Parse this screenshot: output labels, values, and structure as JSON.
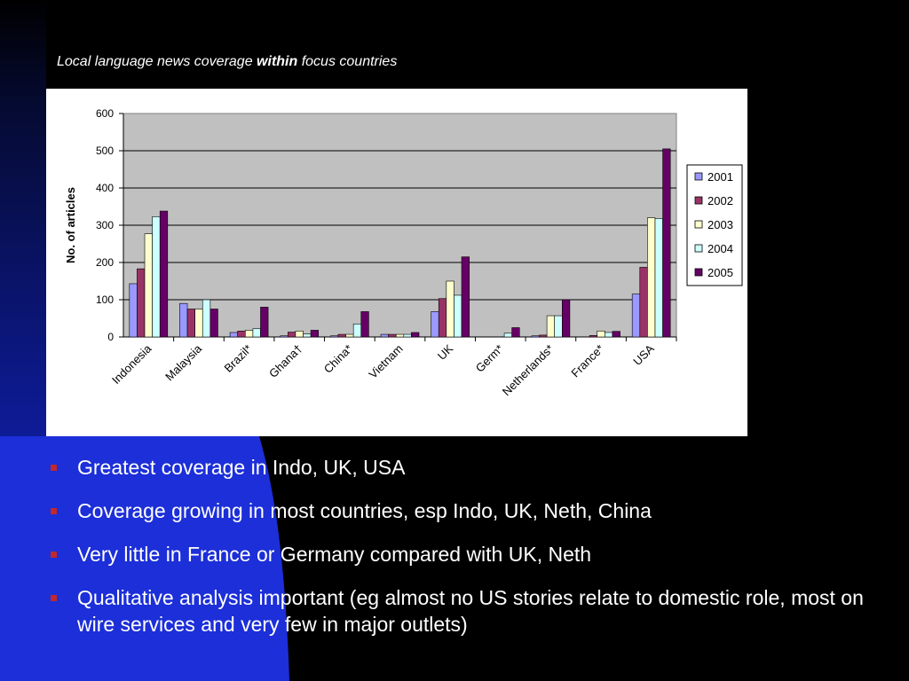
{
  "colors": {
    "background": "#000000",
    "blue_accent": "#1c2fd8",
    "text": "#ffffff",
    "bullet": "#c0282d",
    "plot_area": "#c0c0c0"
  },
  "title": {
    "before": "Local language news coverage ",
    "emphasis": "within",
    "after": " focus countries"
  },
  "chart_data": {
    "type": "bar",
    "title": "",
    "xlabel": "",
    "ylabel": "No. of articles",
    "ylim": [
      0,
      600
    ],
    "yticks": [
      "0",
      "100",
      "200",
      "300",
      "400",
      "500",
      "600"
    ],
    "grid": true,
    "legend_position": "right",
    "categories": [
      "Indonesia",
      "Malaysia",
      "Brazil*",
      "Ghana†",
      "China*",
      "Vietnam",
      "UK",
      "Germ*",
      "Netherlands*",
      "France*",
      "USA"
    ],
    "series": [
      {
        "name": "2001",
        "color": "#9999ff",
        "values": [
          143,
          90,
          12,
          3,
          3,
          7,
          68,
          0,
          3,
          0,
          115
        ]
      },
      {
        "name": "2002",
        "color": "#993366",
        "values": [
          183,
          75,
          16,
          13,
          7,
          7,
          103,
          0,
          5,
          4,
          187
        ]
      },
      {
        "name": "2003",
        "color": "#ffffcc",
        "values": [
          277,
          75,
          18,
          16,
          7,
          7,
          150,
          0,
          57,
          16,
          320
        ]
      },
      {
        "name": "2004",
        "color": "#ccffff",
        "values": [
          323,
          100,
          22,
          8,
          35,
          7,
          112,
          10,
          57,
          12,
          318
        ]
      },
      {
        "name": "2005",
        "color": "#660066",
        "values": [
          338,
          75,
          80,
          18,
          68,
          12,
          215,
          25,
          100,
          15,
          505
        ]
      }
    ]
  },
  "bullets": [
    "Greatest coverage in Indo, UK, USA",
    "Coverage growing in most countries, esp Indo, UK, Neth, China",
    "Very little in France or Germany compared with UK, Neth",
    "Qualitative analysis important (eg almost no US stories relate to domestic role, most on wire services and very few in major outlets)"
  ]
}
